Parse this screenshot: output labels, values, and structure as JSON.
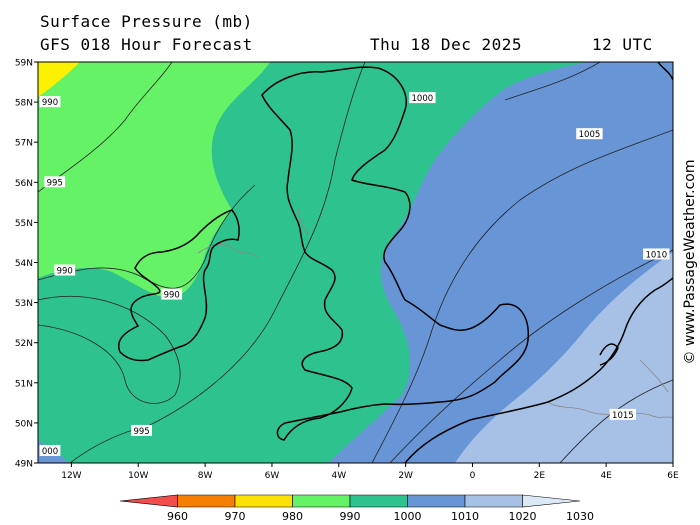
{
  "header": {
    "title": "Surface Pressure (mb)",
    "model": "GFS 018 Hour Forecast",
    "date": "Thu 18 Dec 2025",
    "hour": "12 UTC"
  },
  "credit": "© www.PassageWeather.com",
  "map": {
    "lat_labels": [
      "59N",
      "58N",
      "57N",
      "56N",
      "55N",
      "54N",
      "53N",
      "52N",
      "51N",
      "50N",
      "49N"
    ],
    "lon_labels": [
      "12W",
      "10W",
      "8W",
      "6W",
      "4W",
      "2W",
      "0",
      "2E",
      "4E",
      "6E"
    ],
    "isobar_labels": [
      {
        "text": "1000",
        "lon": -1.5,
        "lat": 58.1
      },
      {
        "text": "1005",
        "lon": 3.5,
        "lat": 57.2
      },
      {
        "text": "1010",
        "lon": 5.5,
        "lat": 54.2
      },
      {
        "text": "1015",
        "lon": 4.5,
        "lat": 50.2
      },
      {
        "text": "995",
        "lon": -12.5,
        "lat": 56.0
      },
      {
        "text": "990",
        "lon": -12.2,
        "lat": 53.8
      },
      {
        "text": "990",
        "lon": -9.0,
        "lat": 53.2
      },
      {
        "text": "995",
        "lon": -9.9,
        "lat": 49.8
      },
      {
        "text": "990",
        "lon": -12.8,
        "lat": 58.0
      },
      {
        "text": "000",
        "lon": -12.7,
        "lat": 49.3
      }
    ],
    "colors": {
      "band_985_990": "#fbf100",
      "band_990_1000": "#66f266",
      "band_1000_1010": "#2ec28e",
      "band_1010_1020": "#6795d6",
      "band_1020_1030": "#a7c1e6",
      "coast": "#000000",
      "border": "#888888"
    }
  },
  "legend": {
    "labels": [
      "960",
      "970",
      "980",
      "990",
      "1000",
      "1010",
      "1020",
      "1030"
    ],
    "colors": [
      "#f24d4d",
      "#f57f00",
      "#fbe000",
      "#66f266",
      "#2ec28e",
      "#6795d6",
      "#a7c1e6",
      "#dde8f6"
    ]
  }
}
